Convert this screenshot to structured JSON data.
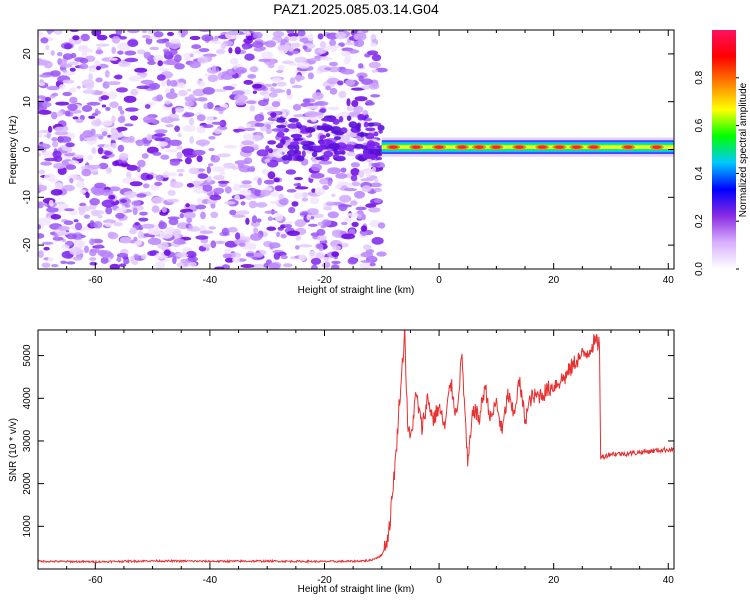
{
  "title": "PAZ1.2025.085.03.14.G04",
  "chart_data": [
    {
      "type": "heatmap",
      "xlabel": "Height of straight line (km)",
      "ylabel": "Frequency (Hz)",
      "xlim": [
        -70,
        41
      ],
      "ylim": [
        -25,
        25
      ],
      "xticks": [
        -60,
        -40,
        -20,
        0,
        20,
        40
      ],
      "yticks": [
        -20,
        -10,
        0,
        10,
        20
      ],
      "colorbar": {
        "label": "Normalized spectral amplitude",
        "range": [
          0,
          1
        ],
        "ticks": [
          0.0,
          0.2,
          0.4,
          0.6,
          0.8
        ],
        "colors": [
          "#ffffff",
          "#d8b0ff",
          "#8a2be2",
          "#0000ff",
          "#00c8ff",
          "#00ff00",
          "#ffff00",
          "#ff8000",
          "#ff0000",
          "#ff1060"
        ]
      },
      "regions": [
        {
          "x_range": [
            -70,
            -10
          ],
          "pattern": "scattered noise",
          "amplitude": [
            0.0,
            0.25
          ]
        },
        {
          "x_range": [
            -10,
            41
          ],
          "pattern": "narrow band",
          "frequency_center": 0.5,
          "frequency_width": 2.5,
          "peak_amplitude": 0.95
        }
      ]
    },
    {
      "type": "line",
      "xlabel": "Height of straight line (km)",
      "ylabel": "SNR (10 * v/v)",
      "xlim": [
        -70,
        41
      ],
      "ylim": [
        0,
        5600
      ],
      "xticks": [
        -60,
        -40,
        -20,
        0,
        20,
        40
      ],
      "yticks": [
        1000,
        2000,
        3000,
        4000,
        5000
      ],
      "color": "#e83030",
      "series": [
        {
          "x": [
            -70,
            -60,
            -50,
            -40,
            -30,
            -20,
            -15,
            -12,
            -10,
            -9,
            -8.5,
            -8,
            -7.5,
            -7,
            -6.5,
            -6,
            -5.5,
            -5,
            -4,
            -3,
            -2,
            -1,
            0,
            1,
            2,
            3,
            4,
            5,
            6,
            7,
            8,
            9,
            10,
            11,
            12,
            13,
            14,
            15,
            16,
            18,
            20,
            22,
            24,
            26,
            27,
            28,
            28.2,
            29,
            30,
            32,
            34,
            36,
            38,
            40,
            41
          ],
          "y": [
            180,
            170,
            190,
            180,
            185,
            175,
            180,
            200,
            320,
            700,
            1200,
            2000,
            2700,
            3800,
            4600,
            5600,
            3400,
            3000,
            4100,
            3300,
            4000,
            3500,
            3800,
            3300,
            4400,
            3600,
            5000,
            2400,
            3800,
            3500,
            4300,
            3500,
            3900,
            3200,
            4100,
            3600,
            4400,
            3500,
            4000,
            4100,
            4300,
            4500,
            4900,
            5100,
            5300,
            5300,
            2600,
            2650,
            2700,
            2700,
            2720,
            2750,
            2780,
            2800,
            2800
          ]
        }
      ]
    }
  ]
}
